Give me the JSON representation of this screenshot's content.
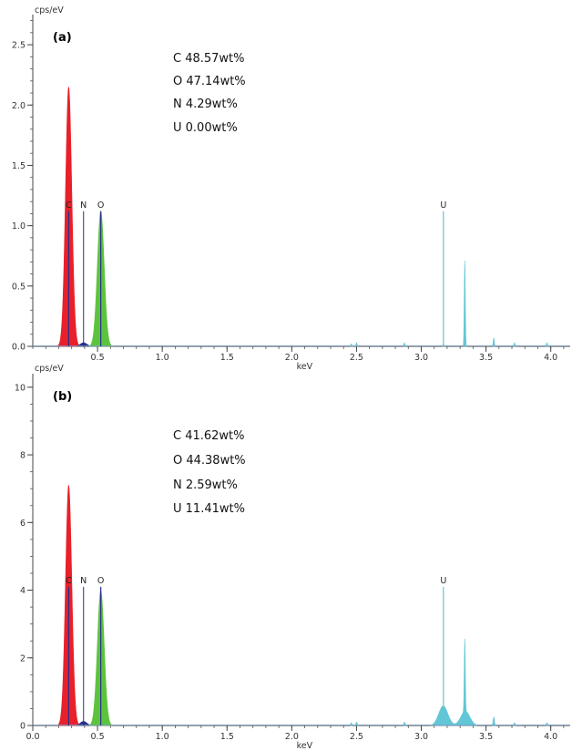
{
  "chart_data": [
    {
      "type": "area",
      "panel_label": "(a)",
      "ylabel": "cps/eV",
      "xlabel": "keV",
      "xlim": [
        0.0,
        4.15
      ],
      "ylim": [
        0,
        2.75
      ],
      "x_ticks": [
        "0.5",
        "1.0",
        "1.5",
        "2.0",
        "2.5",
        "3.0",
        "3.5",
        "4.0"
      ],
      "y_ticks": [
        "0.0",
        "0.5",
        "1.0",
        "1.5",
        "2.0",
        "2.5"
      ],
      "composition": [
        "C 48.57wt%",
        "O 47.14wt%",
        "N 4.29wt%",
        "U 0.00wt%"
      ],
      "element_markers": [
        {
          "label": "C",
          "x": 0.277,
          "y": 1.12
        },
        {
          "label": "N",
          "x": 0.392,
          "y": 1.12
        },
        {
          "label": "O",
          "x": 0.525,
          "y": 1.12
        },
        {
          "label": "U",
          "x": 3.171,
          "y": 1.12
        }
      ],
      "series": [
        {
          "name": "C",
          "color": "#e8202a",
          "peaks": [
            {
              "x": 0.277,
              "height": 2.15,
              "sigma": 0.024
            }
          ]
        },
        {
          "name": "N",
          "color": "#2a2e8c",
          "peaks": [
            {
              "x": 0.392,
              "height": 0.03,
              "sigma": 0.025
            }
          ]
        },
        {
          "name": "O",
          "color": "#5cc43c",
          "peaks": [
            {
              "x": 0.525,
              "height": 1.12,
              "sigma": 0.026
            }
          ]
        },
        {
          "name": "U",
          "color": "#62c6d6",
          "peaks": [
            {
              "x": 2.46,
              "height": 0.02,
              "sigma": 0.004
            },
            {
              "x": 2.5,
              "height": 0.03,
              "sigma": 0.004
            },
            {
              "x": 2.87,
              "height": 0.03,
              "sigma": 0.004
            },
            {
              "x": 3.17,
              "height": 0.02,
              "sigma": 0.004
            },
            {
              "x": 3.336,
              "height": 0.71,
              "sigma": 0.004
            },
            {
              "x": 3.56,
              "height": 0.07,
              "sigma": 0.004
            },
            {
              "x": 3.72,
              "height": 0.03,
              "sigma": 0.004
            },
            {
              "x": 3.97,
              "height": 0.03,
              "sigma": 0.004
            }
          ]
        }
      ]
    },
    {
      "type": "area",
      "panel_label": "(b)",
      "ylabel": "cps/eV",
      "xlabel": "keV",
      "xlim": [
        0.0,
        4.15
      ],
      "ylim": [
        0,
        10.4
      ],
      "x_ticks": [
        "0.0",
        "0.5",
        "1.0",
        "1.5",
        "2.0",
        "2.5",
        "3.0",
        "3.5",
        "4.0"
      ],
      "y_ticks": [
        "0",
        "2",
        "4",
        "6",
        "8",
        "10"
      ],
      "composition": [
        "C 41.62wt%",
        "O 44.38wt%",
        "N 2.59wt%",
        "U 11.41wt%"
      ],
      "element_markers": [
        {
          "label": "C",
          "x": 0.277,
          "y": 4.1
        },
        {
          "label": "N",
          "x": 0.392,
          "y": 4.1
        },
        {
          "label": "O",
          "x": 0.525,
          "y": 4.1
        },
        {
          "label": "U",
          "x": 3.171,
          "y": 4.1
        }
      ],
      "series": [
        {
          "name": "C",
          "color": "#e8202a",
          "peaks": [
            {
              "x": 0.277,
              "height": 7.1,
              "sigma": 0.024
            }
          ]
        },
        {
          "name": "N",
          "color": "#2a2e8c",
          "peaks": [
            {
              "x": 0.392,
              "height": 0.12,
              "sigma": 0.025
            }
          ]
        },
        {
          "name": "O",
          "color": "#5cc43c",
          "peaks": [
            {
              "x": 0.525,
              "height": 4.0,
              "sigma": 0.026
            }
          ]
        },
        {
          "name": "U",
          "color": "#62c6d6",
          "peaks": [
            {
              "x": 2.46,
              "height": 0.08,
              "sigma": 0.005
            },
            {
              "x": 2.5,
              "height": 0.1,
              "sigma": 0.005
            },
            {
              "x": 2.87,
              "height": 0.1,
              "sigma": 0.005
            },
            {
              "x": 3.17,
              "height": 0.58,
              "sigma": 0.035
            },
            {
              "x": 3.34,
              "height": 0.42,
              "sigma": 0.035
            },
            {
              "x": 3.336,
              "height": 2.15,
              "sigma": 0.004
            },
            {
              "x": 3.56,
              "height": 0.25,
              "sigma": 0.005
            },
            {
              "x": 3.72,
              "height": 0.08,
              "sigma": 0.005
            },
            {
              "x": 3.97,
              "height": 0.08,
              "sigma": 0.005
            }
          ]
        }
      ]
    }
  ]
}
